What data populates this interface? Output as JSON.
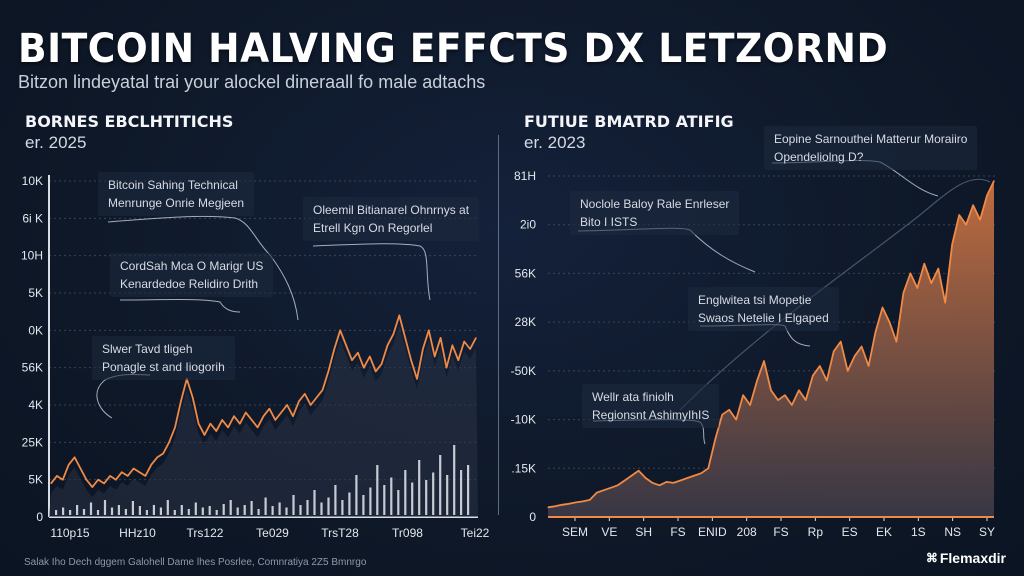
{
  "header": {
    "title": "BITCOIN HALVING EFFCTS DX LETZORND",
    "subtitle": "Bitzon lindeyatal trai your alockel dineraall fo male adtachs"
  },
  "footer": {
    "note": "Salak Iho Dech dggem Galohell Dame lhes Posrlee, Comnratiya 2Z5 Bmnrgo",
    "brand": "Flemaxdir",
    "brand_icon": "logo-icon"
  },
  "colors": {
    "background": "#0f1a2b",
    "accent_line": "#f08a45",
    "area_fill_top": "#c8703f",
    "area_fill_bottom": "#3c3a48",
    "volume_bar": "#e6e9ee",
    "grid": "#4a5568"
  },
  "chart_data": [
    {
      "type": "line",
      "panel_title": "BORNES EBCLHTITICHS",
      "panel_subtitle": "er. 2025",
      "title": "BORNES EBCLHTITICHS",
      "xlabel": "",
      "ylabel": "",
      "grid": true,
      "y_tick_labels": [
        "10K",
        "6i K",
        "10H",
        "5K",
        "0K",
        "56K",
        "4K",
        "25K",
        "5K",
        "0"
      ],
      "x_tick_labels": [
        "110p15",
        "HHz10",
        "Trs122",
        "Te029",
        "TrsT28",
        "Tr098",
        "Tei22"
      ],
      "ylim": [
        0,
        9
      ],
      "series": [
        {
          "name": "price",
          "values": [
            0.9,
            1.1,
            1.0,
            1.4,
            1.6,
            1.3,
            1.0,
            0.8,
            1.0,
            0.9,
            1.1,
            1.0,
            1.2,
            1.1,
            1.3,
            1.2,
            1.1,
            1.4,
            1.6,
            1.7,
            2.0,
            2.4,
            3.1,
            3.7,
            3.2,
            2.5,
            2.2,
            2.5,
            2.3,
            2.6,
            2.4,
            2.7,
            2.5,
            2.8,
            2.6,
            2.4,
            2.7,
            2.9,
            2.6,
            2.8,
            3.0,
            2.7,
            3.1,
            3.3,
            3.0,
            3.2,
            3.4,
            3.9,
            4.5,
            5.0,
            4.6,
            4.2,
            4.4,
            4.0,
            4.3,
            3.9,
            4.1,
            4.6,
            4.9,
            5.4,
            4.8,
            4.2,
            3.7,
            4.5,
            5.0,
            4.3,
            4.8,
            4.0,
            4.6,
            4.2,
            4.7,
            4.5,
            4.8
          ]
        },
        {
          "name": "volume",
          "values": [
            0.1,
            0.15,
            0.1,
            0.2,
            0.12,
            0.25,
            0.1,
            0.3,
            0.15,
            0.2,
            0.12,
            0.28,
            0.18,
            0.1,
            0.2,
            0.15,
            0.3,
            0.1,
            0.2,
            0.12,
            0.25,
            0.15,
            0.18,
            0.1,
            0.22,
            0.3,
            0.15,
            0.2,
            0.28,
            0.12,
            0.35,
            0.18,
            0.25,
            0.15,
            0.4,
            0.2,
            0.3,
            0.5,
            0.25,
            0.35,
            0.6,
            0.3,
            0.45,
            0.8,
            0.4,
            0.55,
            1.0,
            0.6,
            0.75,
            0.5,
            0.9,
            0.65,
            1.1,
            0.7,
            0.85,
            1.2,
            0.8,
            1.4,
            0.9,
            1.0
          ]
        }
      ],
      "annotations": [
        {
          "line1": "Bitcoin Sahing Technical",
          "line2": "Menrunge Onrie Megjeen"
        },
        {
          "line1": "Oleemil Bitianarel Ohnrnys at",
          "line2": "Etrell Kgn On Regorlel"
        },
        {
          "line1": "CordSah Mca O Marigr US",
          "line2": "Kenardedoe Relidiro Drith"
        },
        {
          "line1": "Slwer Tavd tligeh",
          "line2": "Ponagle st and Iiogorih"
        }
      ]
    },
    {
      "type": "area",
      "panel_title": "FUTIUE BMATRD ATIFIG",
      "panel_subtitle": "er. 2023",
      "title": "FUTIUE BMATRD ATIFIG",
      "xlabel": "",
      "ylabel": "",
      "grid": true,
      "y_tick_labels": [
        "81H",
        "2i0",
        "56K",
        "28K",
        "-50K",
        "-10K",
        ".15K",
        "0"
      ],
      "x_tick_labels": [
        "SEM",
        "VE",
        "SH",
        "FS",
        "ENID",
        "208",
        "FS",
        "Rp",
        "ES",
        "EK",
        "1S",
        "NS",
        "SY"
      ],
      "ylim": [
        0,
        7
      ],
      "series": [
        {
          "name": "price",
          "values": [
            0.2,
            0.22,
            0.25,
            0.27,
            0.3,
            0.32,
            0.35,
            0.5,
            0.55,
            0.6,
            0.65,
            0.75,
            0.85,
            0.95,
            0.8,
            0.7,
            0.65,
            0.72,
            0.7,
            0.75,
            0.8,
            0.85,
            0.9,
            1.0,
            1.6,
            2.1,
            2.2,
            2.0,
            2.5,
            2.3,
            2.8,
            3.2,
            2.6,
            2.4,
            2.5,
            2.3,
            2.6,
            2.4,
            2.9,
            3.1,
            2.8,
            3.4,
            3.6,
            3.0,
            3.3,
            3.5,
            3.1,
            3.8,
            4.3,
            4.0,
            3.6,
            4.6,
            5.0,
            4.7,
            5.2,
            4.8,
            5.1,
            4.4,
            5.6,
            6.2,
            6.0,
            6.4,
            6.1,
            6.6,
            6.9
          ]
        }
      ],
      "trend_overlay": true,
      "annotations": [
        {
          "line1": "Eopine Sarnouthei Matterur Moraiiro",
          "line2": "Opendeliolng D?"
        },
        {
          "line1": "Noclole Baloy Rale Enrleser",
          "line2": "Bito I ISTS"
        },
        {
          "line1": "Englwitea tsi Mopetie",
          "line2": "Swaos Netelie I Elgaped"
        },
        {
          "line1": "Wellr ata finiolh",
          "line2": "Regionsnt AshimyIhIS"
        }
      ]
    }
  ]
}
